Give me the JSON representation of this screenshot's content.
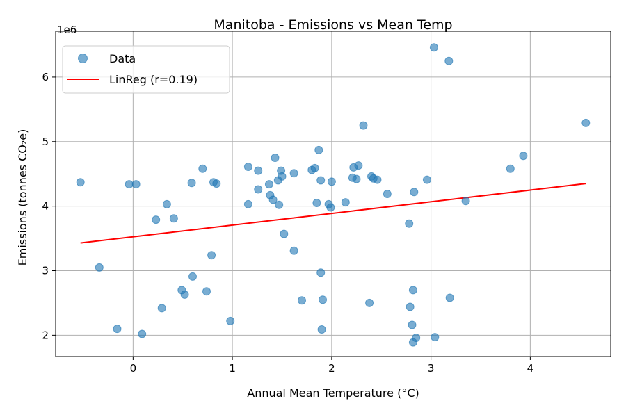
{
  "chart_data": {
    "type": "scatter",
    "title": "Manitoba - Emissions vs Mean Temp",
    "xlabel": "Annual Mean Temperature (°C)",
    "ylabel": "Emissions (tonnes CO₂e)",
    "y_offset_label": "1e6",
    "xlim": [
      -0.78,
      4.81
    ],
    "ylim": [
      1.67,
      6.71
    ],
    "xticks": [
      0,
      1,
      2,
      3,
      4
    ],
    "yticks": [
      2,
      3,
      4,
      5,
      6
    ],
    "grid": true,
    "legend_position": "top-left",
    "series": [
      {
        "name": "Data",
        "color": "#1f77b4",
        "kind": "scatter",
        "points": [
          [
            -0.53,
            4.37
          ],
          [
            -0.34,
            3.05
          ],
          [
            -0.16,
            2.1
          ],
          [
            -0.04,
            4.34
          ],
          [
            0.03,
            4.34
          ],
          [
            0.09,
            2.02
          ],
          [
            0.23,
            3.79
          ],
          [
            0.29,
            2.42
          ],
          [
            0.34,
            4.03
          ],
          [
            0.41,
            3.81
          ],
          [
            0.49,
            2.7
          ],
          [
            0.52,
            2.63
          ],
          [
            0.59,
            4.36
          ],
          [
            0.6,
            2.91
          ],
          [
            0.7,
            4.58
          ],
          [
            0.74,
            2.68
          ],
          [
            0.79,
            3.24
          ],
          [
            0.81,
            4.37
          ],
          [
            0.84,
            4.35
          ],
          [
            0.98,
            2.22
          ],
          [
            1.16,
            4.61
          ],
          [
            1.16,
            4.03
          ],
          [
            1.26,
            4.55
          ],
          [
            1.26,
            4.26
          ],
          [
            1.37,
            4.34
          ],
          [
            1.38,
            4.17
          ],
          [
            1.41,
            4.1
          ],
          [
            1.43,
            4.75
          ],
          [
            1.46,
            4.4
          ],
          [
            1.47,
            4.02
          ],
          [
            1.49,
            4.55
          ],
          [
            1.5,
            4.46
          ],
          [
            1.52,
            3.57
          ],
          [
            1.62,
            4.51
          ],
          [
            1.62,
            3.31
          ],
          [
            1.7,
            2.54
          ],
          [
            1.8,
            4.56
          ],
          [
            1.83,
            4.59
          ],
          [
            1.85,
            4.05
          ],
          [
            1.87,
            4.87
          ],
          [
            1.89,
            4.4
          ],
          [
            1.89,
            2.97
          ],
          [
            1.9,
            2.09
          ],
          [
            1.91,
            2.55
          ],
          [
            1.97,
            4.03
          ],
          [
            1.99,
            3.98
          ],
          [
            2.0,
            4.38
          ],
          [
            2.14,
            4.06
          ],
          [
            2.21,
            4.44
          ],
          [
            2.22,
            4.6
          ],
          [
            2.25,
            4.42
          ],
          [
            2.27,
            4.63
          ],
          [
            2.32,
            5.25
          ],
          [
            2.38,
            2.5
          ],
          [
            2.4,
            4.46
          ],
          [
            2.42,
            4.43
          ],
          [
            2.46,
            4.41
          ],
          [
            2.56,
            4.19
          ],
          [
            2.78,
            3.73
          ],
          [
            2.79,
            2.44
          ],
          [
            2.81,
            2.16
          ],
          [
            2.82,
            2.7
          ],
          [
            2.82,
            1.89
          ],
          [
            2.83,
            4.22
          ],
          [
            2.85,
            1.96
          ],
          [
            2.96,
            4.41
          ],
          [
            3.03,
            6.46
          ],
          [
            3.04,
            1.97
          ],
          [
            3.18,
            6.25
          ],
          [
            3.19,
            2.58
          ],
          [
            3.35,
            4.08
          ],
          [
            3.8,
            4.58
          ],
          [
            3.93,
            4.78
          ],
          [
            4.56,
            5.29
          ]
        ]
      },
      {
        "name": "LinReg (r=0.19)",
        "color": "#ff0000",
        "kind": "line",
        "points": [
          [
            -0.53,
            3.43
          ],
          [
            4.56,
            4.35
          ]
        ]
      }
    ]
  }
}
